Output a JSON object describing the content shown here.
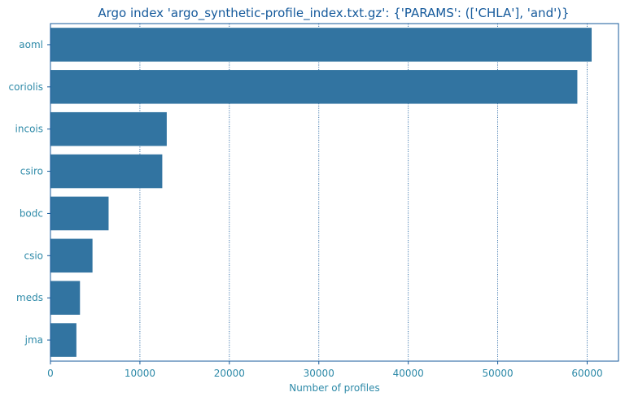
{
  "chart_data": {
    "type": "bar",
    "orientation": "horizontal",
    "title": "Argo index 'argo_synthetic-profile_index.txt.gz': {'PARAMS': (['CHLA'], 'and')}",
    "xlabel": "Number of profiles",
    "ylabel": "",
    "categories": [
      "aoml",
      "coriolis",
      "incois",
      "csiro",
      "bodc",
      "csio",
      "meds",
      "jma"
    ],
    "values": [
      60500,
      58900,
      13000,
      12500,
      6500,
      4700,
      3300,
      2900
    ],
    "xlim": [
      0,
      63500
    ],
    "xticks": [
      0,
      10000,
      20000,
      30000,
      40000,
      50000,
      60000
    ],
    "xtick_labels": [
      "0",
      "10000",
      "20000",
      "30000",
      "40000",
      "50000",
      "60000"
    ],
    "grid": "vertical, dotted",
    "bar_color": "#3274a1",
    "text_color": "#2e8aa8",
    "title_color": "#14599b"
  }
}
